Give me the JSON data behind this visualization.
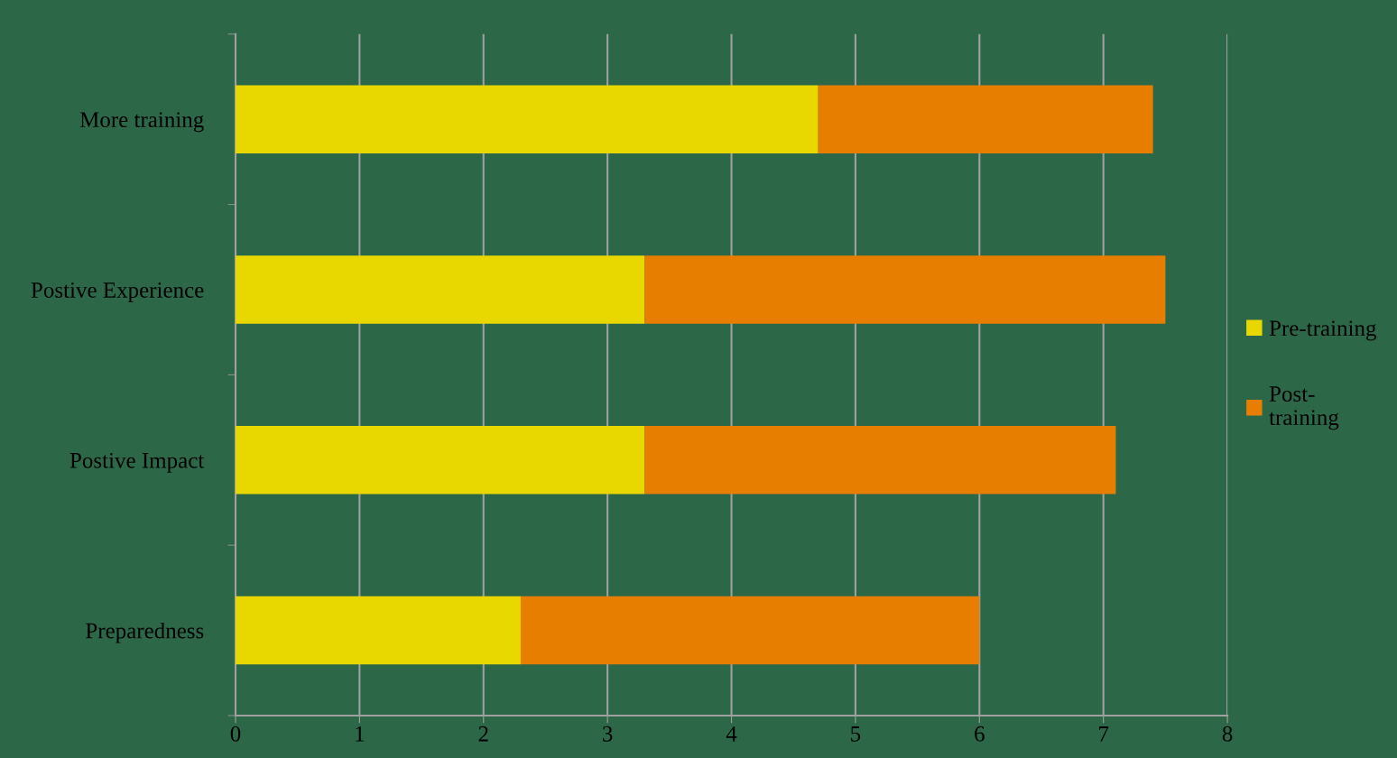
{
  "chart_data": {
    "type": "bar",
    "orientation": "horizontal",
    "stacked": true,
    "categories": [
      "More training",
      "Postive Experience",
      "Postive Impact",
      "Preparedness"
    ],
    "series": [
      {
        "name": "Pre-training",
        "color": "#e8d800",
        "values": [
          4.7,
          3.3,
          3.3,
          2.3
        ]
      },
      {
        "name": "Post-\ntraining",
        "color": "#e87e00",
        "values": [
          2.7,
          4.2,
          3.8,
          3.7
        ]
      }
    ],
    "xlim": [
      0,
      8
    ],
    "xticks": [
      0,
      1,
      2,
      3,
      4,
      5,
      6,
      7,
      8
    ],
    "grid": "x",
    "legend": "right"
  }
}
